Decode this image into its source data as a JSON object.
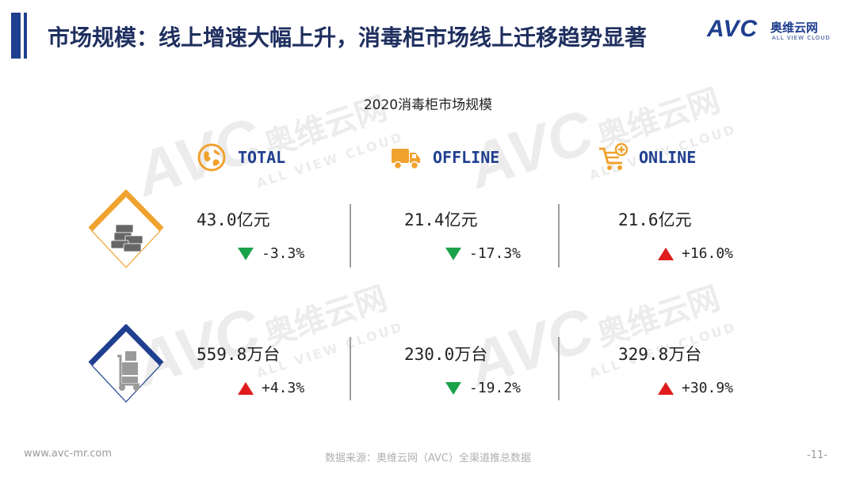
{
  "header": {
    "title": "市场规模：线上增速大幅上升，消毒柜市场线上迁移趋势显著"
  },
  "logo": {
    "mark": "AVC",
    "cn_name": "奥维云网",
    "en_name": "ALL VIEW CLOUD"
  },
  "watermark": {
    "mark": "AVC",
    "cn_name": "奥维云网",
    "en_name": "ALL VIEW CLOUD"
  },
  "subtitle": "2020消毒柜市场规模",
  "columns": [
    {
      "label": "TOTAL",
      "icon": "globe-icon"
    },
    {
      "label": "OFFLINE",
      "icon": "truck-icon"
    },
    {
      "label": "ONLINE",
      "icon": "cart-plus-icon"
    }
  ],
  "rows": [
    {
      "icon": "money-stack-icon",
      "accent": "#f0a22e",
      "cells": [
        {
          "value": "43.0亿元",
          "change": "-3.3%",
          "direction": "down"
        },
        {
          "value": "21.4亿元",
          "change": "-17.3%",
          "direction": "down"
        },
        {
          "value": "21.6亿元",
          "change": "+16.0%",
          "direction": "up"
        }
      ]
    },
    {
      "icon": "hand-truck-boxes-icon",
      "accent": "#1f3f8f",
      "cells": [
        {
          "value": "559.8万台",
          "change": "+4.3%",
          "direction": "up"
        },
        {
          "value": "230.0万台",
          "change": "-19.2%",
          "direction": "down"
        },
        {
          "value": "329.8万台",
          "change": "+30.9%",
          "direction": "up"
        }
      ]
    }
  ],
  "colors": {
    "brand_blue": "#1f3f8f",
    "orange": "#f0a22e",
    "down_green": "#1aa24a",
    "up_red": "#e01b1b"
  },
  "footer": {
    "website": "www.avc-mr.com",
    "source": "数据来源：奥维云网（AVC）全渠道推总数据",
    "page": "-11-"
  }
}
